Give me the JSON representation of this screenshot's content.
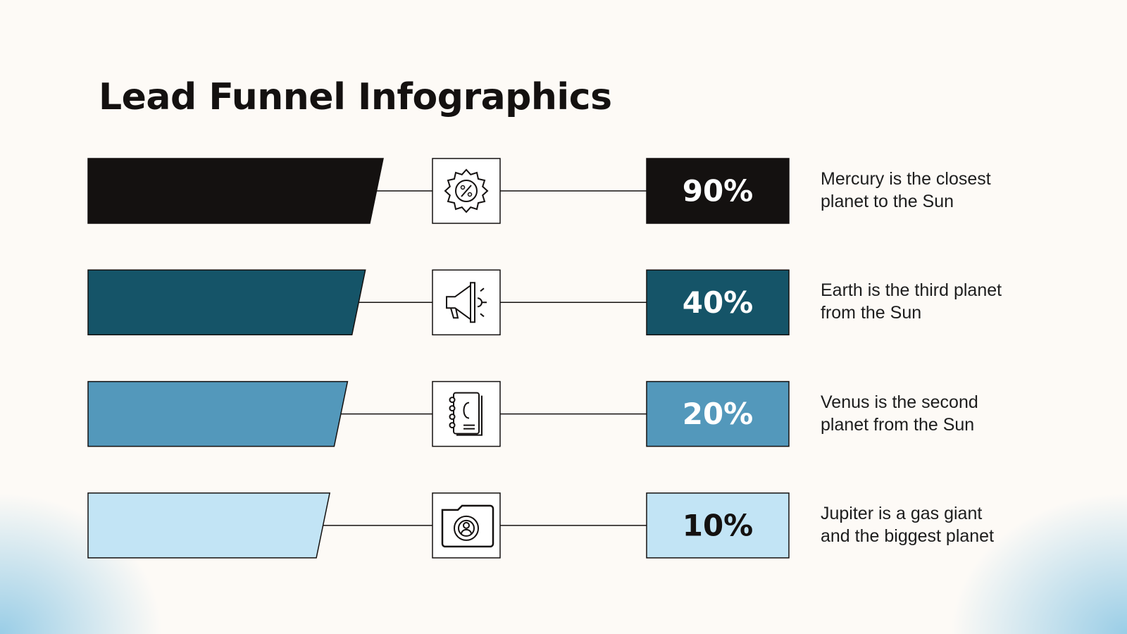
{
  "title": "Lead Funnel Infographics",
  "rows": [
    {
      "value": "90%",
      "color": "#141110",
      "description": [
        "Mercury is the closest",
        "planet to the Sun"
      ]
    },
    {
      "value": "40%",
      "color": "#155468",
      "description": [
        "Earth is the third planet",
        "from the Sun"
      ]
    },
    {
      "value": "20%",
      "color": "#5398bb",
      "description": [
        "Venus is the second",
        "planet from the Sun"
      ]
    },
    {
      "value": "10%",
      "color": "#c2e4f5",
      "description": [
        "Jupiter is a gas giant",
        "and the biggest planet"
      ]
    }
  ]
}
